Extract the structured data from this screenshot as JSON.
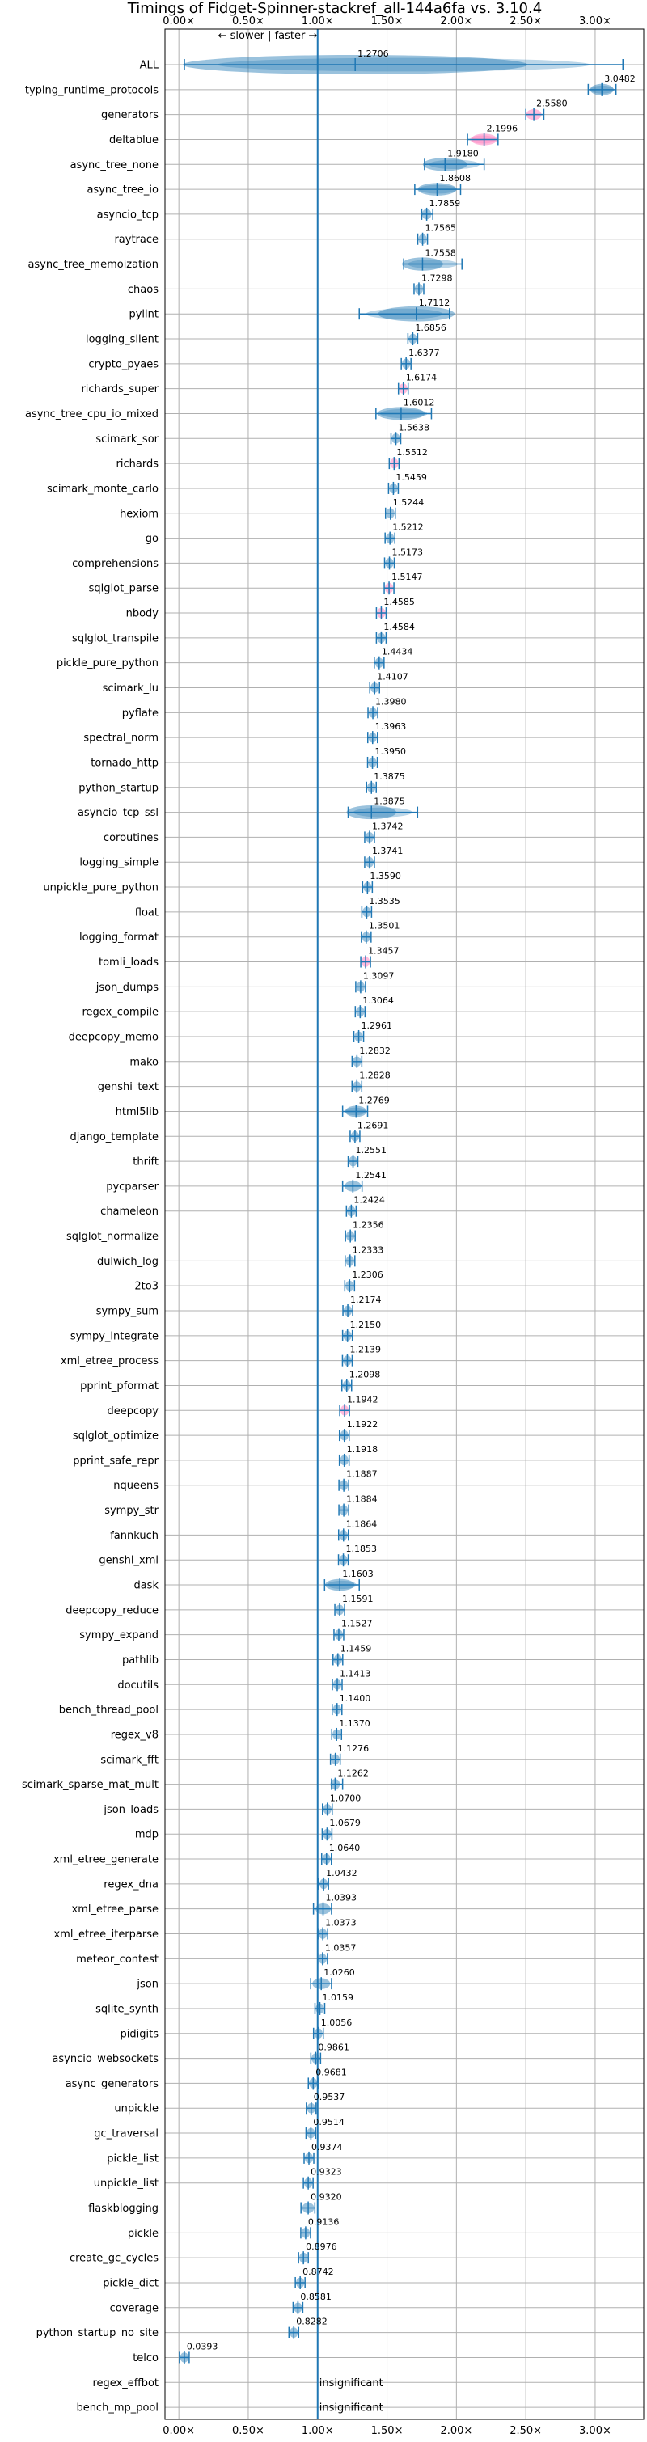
{
  "chart_data": {
    "type": "violin",
    "title": "Timings of Fidget-Spinner-stackref_all-144a6fa vs. 3.10.4",
    "annotation": "← slower | faster →",
    "xlim": [
      -0.1,
      3.35
    ],
    "x_ticks": [
      "0.00×",
      "0.50×",
      "1.00×",
      "1.50×",
      "2.00×",
      "2.50×",
      "3.00×"
    ],
    "x_tick_values": [
      0,
      0.5,
      1.0,
      1.5,
      2.0,
      2.5,
      3.0
    ],
    "reference_line": 1.0,
    "grid": true,
    "colors": {
      "violin": "#1f77b4",
      "violin_highlight": "#ff69b4",
      "line": "#1f77b4",
      "grid": "#b0b0b0"
    },
    "categories": [
      "ALL",
      "typing_runtime_protocols",
      "generators",
      "deltablue",
      "async_tree_none",
      "async_tree_io",
      "asyncio_tcp",
      "raytrace",
      "async_tree_memoization",
      "chaos",
      "pylint",
      "logging_silent",
      "crypto_pyaes",
      "richards_super",
      "async_tree_cpu_io_mixed",
      "scimark_sor",
      "richards",
      "scimark_monte_carlo",
      "hexiom",
      "go",
      "comprehensions",
      "sqlglot_parse",
      "nbody",
      "sqlglot_transpile",
      "pickle_pure_python",
      "scimark_lu",
      "pyflate",
      "spectral_norm",
      "tornado_http",
      "python_startup",
      "asyncio_tcp_ssl",
      "coroutines",
      "logging_simple",
      "unpickle_pure_python",
      "float",
      "logging_format",
      "tomli_loads",
      "json_dumps",
      "regex_compile",
      "deepcopy_memo",
      "mako",
      "genshi_text",
      "html5lib",
      "django_template",
      "thrift",
      "pycparser",
      "chameleon",
      "sqlglot_normalize",
      "dulwich_log",
      "2to3",
      "sympy_sum",
      "sympy_integrate",
      "xml_etree_process",
      "pprint_pformat",
      "deepcopy",
      "sqlglot_optimize",
      "pprint_safe_repr",
      "nqueens",
      "sympy_str",
      "fannkuch",
      "genshi_xml",
      "dask",
      "deepcopy_reduce",
      "sympy_expand",
      "pathlib",
      "docutils",
      "bench_thread_pool",
      "regex_v8",
      "scimark_fft",
      "scimark_sparse_mat_mult",
      "json_loads",
      "mdp",
      "xml_etree_generate",
      "regex_dna",
      "xml_etree_parse",
      "xml_etree_iterparse",
      "meteor_contest",
      "json",
      "sqlite_synth",
      "pidigits",
      "asyncio_websockets",
      "async_generators",
      "unpickle",
      "gc_traversal",
      "pickle_list",
      "unpickle_list",
      "flaskblogging",
      "pickle",
      "create_gc_cycles",
      "pickle_dict",
      "coverage",
      "python_startup_no_site",
      "telco",
      "regex_effbot",
      "bench_mp_pool"
    ],
    "values": [
      1.2706,
      3.0482,
      2.558,
      2.1996,
      1.918,
      1.8608,
      1.7859,
      1.7565,
      1.7558,
      1.7298,
      1.7112,
      1.6856,
      1.6377,
      1.6174,
      1.6012,
      1.5638,
      1.5512,
      1.5459,
      1.5244,
      1.5212,
      1.5173,
      1.5147,
      1.4585,
      1.4584,
      1.4434,
      1.4107,
      1.398,
      1.3963,
      1.395,
      1.3875,
      1.3875,
      1.3742,
      1.3741,
      1.359,
      1.3535,
      1.3501,
      1.3457,
      1.3097,
      1.3064,
      1.2961,
      1.2832,
      1.2828,
      1.2769,
      1.2691,
      1.2551,
      1.2541,
      1.2424,
      1.2356,
      1.2333,
      1.2306,
      1.2174,
      1.215,
      1.2139,
      1.2098,
      1.1942,
      1.1922,
      1.1918,
      1.1887,
      1.1884,
      1.1864,
      1.1853,
      1.1603,
      1.1591,
      1.1527,
      1.1459,
      1.1413,
      1.14,
      1.137,
      1.1276,
      1.1262,
      1.07,
      1.0679,
      1.064,
      1.0432,
      1.0393,
      1.0373,
      1.0357,
      1.026,
      1.0159,
      1.0056,
      0.9861,
      0.9681,
      0.9537,
      0.9514,
      0.9374,
      0.9323,
      0.932,
      0.9136,
      0.8976,
      0.8742,
      0.8581,
      0.8282,
      0.0393,
      null,
      null
    ],
    "value_labels": [
      "1.2706",
      "3.0482",
      "2.5580",
      "2.1996",
      "1.9180",
      "1.8608",
      "1.7859",
      "1.7565",
      "1.7558",
      "1.7298",
      "1.7112",
      "1.6856",
      "1.6377",
      "1.6174",
      "1.6012",
      "1.5638",
      "1.5512",
      "1.5459",
      "1.5244",
      "1.5212",
      "1.5173",
      "1.5147",
      "1.4585",
      "1.4584",
      "1.4434",
      "1.4107",
      "1.3980",
      "1.3963",
      "1.3950",
      "1.3875",
      "1.3875",
      "1.3742",
      "1.3741",
      "1.3590",
      "1.3535",
      "1.3501",
      "1.3457",
      "1.3097",
      "1.3064",
      "1.2961",
      "1.2832",
      "1.2828",
      "1.2769",
      "1.2691",
      "1.2551",
      "1.2541",
      "1.2424",
      "1.2356",
      "1.2333",
      "1.2306",
      "1.2174",
      "1.2150",
      "1.2139",
      "1.2098",
      "1.1942",
      "1.1922",
      "1.1918",
      "1.1887",
      "1.1884",
      "1.1864",
      "1.1853",
      "1.1603",
      "1.1591",
      "1.1527",
      "1.1459",
      "1.1413",
      "1.1400",
      "1.1370",
      "1.1276",
      "1.1262",
      "1.0700",
      "1.0679",
      "1.0640",
      "1.0432",
      "1.0393",
      "1.0373",
      "1.0357",
      "1.0260",
      "1.0159",
      "1.0056",
      "0.9861",
      "0.9681",
      "0.9537",
      "0.9514",
      "0.9374",
      "0.9323",
      "0.9320",
      "0.9136",
      "0.8976",
      "0.8742",
      "0.8581",
      "0.8282",
      "0.0393",
      "insignificant",
      "insignificant"
    ],
    "ranges": {
      "ALL": [
        0.04,
        3.2
      ],
      "typing_runtime_protocols": [
        2.95,
        3.15
      ],
      "generators": [
        2.5,
        2.63
      ],
      "deltablue": [
        2.08,
        2.3
      ],
      "async_tree_none": [
        1.77,
        2.2
      ],
      "async_tree_io": [
        1.7,
        2.03
      ],
      "asyncio_tcp": [
        1.75,
        1.83
      ],
      "async_tree_memoization": [
        1.62,
        2.04
      ],
      "pylint": [
        1.3,
        1.95
      ],
      "async_tree_cpu_io_mixed": [
        1.42,
        1.82
      ],
      "asyncio_tcp_ssl": [
        1.22,
        1.72
      ],
      "html5lib": [
        1.18,
        1.36
      ],
      "pycparser": [
        1.18,
        1.32
      ],
      "dask": [
        1.05,
        1.3
      ],
      "scimark_sparse_mat_mult": [
        1.1,
        1.18
      ],
      "xml_etree_parse": [
        0.97,
        1.1
      ],
      "json": [
        0.95,
        1.1
      ],
      "flaskblogging": [
        0.88,
        0.98
      ]
    },
    "highlighted": [
      "deltablue",
      "generators",
      "richards_super",
      "nbody",
      "tomli_loads",
      "sqlglot_parse",
      "deepcopy",
      "richards"
    ]
  }
}
